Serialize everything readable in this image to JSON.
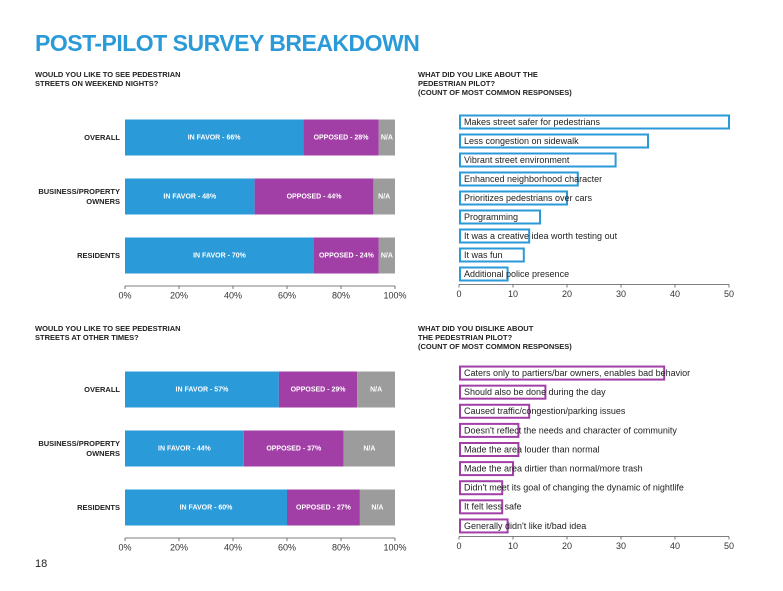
{
  "title": "POST-PILOT SURVEY BREAKDOWN",
  "page_number": "18",
  "chart_data": [
    {
      "type": "bar",
      "stacked": true,
      "orientation": "horizontal",
      "title": "WOULD YOU LIKE TO SEE PEDESTRIAN STREETS ON WEEKEND NIGHTS?",
      "categories": [
        "OVERALL",
        "BUSINESS/PROPERTY OWNERS",
        "RESIDENTS"
      ],
      "series": [
        {
          "color": "#2b9ad8",
          "values": [
            66,
            48,
            70
          ],
          "value_labels": [
            "IN FAVOR - 66%",
            "IN FAVOR - 48%",
            "IN FAVOR - 70%"
          ]
        },
        {
          "color": "#a23fa6",
          "values": [
            28,
            44,
            24
          ],
          "value_labels": [
            "OPPOSED - 28%",
            "OPPOSED - 44%",
            "OPPOSED - 24%"
          ]
        },
        {
          "color": "#9c9c9c",
          "values": [
            6,
            8,
            6
          ],
          "value_labels": [
            "N/A",
            "N/A",
            "N/A"
          ]
        }
      ],
      "xlim": [
        0,
        100
      ],
      "xticks": [
        {
          "value": 0,
          "label": "0%"
        },
        {
          "value": 20,
          "label": "20%"
        },
        {
          "value": 40,
          "label": "40%"
        },
        {
          "value": 60,
          "label": "60%"
        },
        {
          "value": 80,
          "label": "80%"
        },
        {
          "value": 100,
          "label": "100%"
        }
      ]
    },
    {
      "type": "bar",
      "stacked": false,
      "orientation": "horizontal",
      "outline": true,
      "title": "WHAT DID YOU LIKE ABOUT THE PEDESTRIAN PILOT?",
      "subtitle": "(COUNT OF MOST COMMON RESPONSES)",
      "color": "#2b9ad8",
      "categories": [
        "Makes street safer for pedestrians",
        "Less congestion on sidewalk",
        "Vibrant street environment",
        "Enhanced neighborhood character",
        "Prioritizes pedestrians over cars",
        "Programming",
        "It was a creative idea worth testing out",
        "It was fun",
        "Additional police presence"
      ],
      "values": [
        50,
        35,
        29,
        22,
        20,
        15,
        13,
        12,
        9
      ],
      "xlim": [
        0,
        50
      ],
      "xticks": [
        0,
        10,
        20,
        30,
        40,
        50
      ]
    },
    {
      "type": "bar",
      "stacked": true,
      "orientation": "horizontal",
      "title": "WOULD YOU LIKE TO SEE PEDESTRIAN STREETS AT OTHER TIMES?",
      "categories": [
        "OVERALL",
        "BUSINESS/PROPERTY OWNERS",
        "RESIDENTS"
      ],
      "series": [
        {
          "color": "#2b9ad8",
          "values": [
            57,
            44,
            60
          ],
          "value_labels": [
            "IN FAVOR - 57%",
            "IN FAVOR - 44%",
            "IN FAVOR - 60%"
          ]
        },
        {
          "color": "#a23fa6",
          "values": [
            29,
            37,
            27
          ],
          "value_labels": [
            "OPPOSED - 29%",
            "OPPOSED - 37%",
            "OPPOSED - 27%"
          ]
        },
        {
          "color": "#9c9c9c",
          "values": [
            14,
            19,
            13
          ],
          "value_labels": [
            "N/A",
            "N/A",
            "N/A"
          ]
        }
      ],
      "xlim": [
        0,
        100
      ],
      "xticks": [
        {
          "value": 0,
          "label": "0%"
        },
        {
          "value": 20,
          "label": "20%"
        },
        {
          "value": 40,
          "label": "40%"
        },
        {
          "value": 60,
          "label": "60%"
        },
        {
          "value": 80,
          "label": "80%"
        },
        {
          "value": 100,
          "label": "100%"
        }
      ]
    },
    {
      "type": "bar",
      "stacked": false,
      "orientation": "horizontal",
      "outline": true,
      "title": "WHAT DID YOU DISLIKE ABOUT THE PEDESTRIAN PILOT?",
      "subtitle": "(COUNT OF MOST COMMON RESPONSES)",
      "color": "#a23fa6",
      "categories": [
        "Caters only to partiers/bar owners, enables bad behavior",
        "Should also be done during the day",
        "Caused traffic/congestion/parking issues",
        "Doesn't reflect the needs and character of community",
        "Made the area louder than normal",
        "Made the area dirtier than normal/more trash",
        "Didn't meet its goal of changing the dynamic of nightlife",
        "It felt less safe",
        "Generally didn't like it/bad idea"
      ],
      "values": [
        38,
        16,
        13,
        11,
        11,
        10,
        8,
        8,
        9
      ],
      "xlim": [
        0,
        50
      ],
      "xticks": [
        0,
        10,
        20,
        30,
        40,
        50
      ]
    }
  ]
}
